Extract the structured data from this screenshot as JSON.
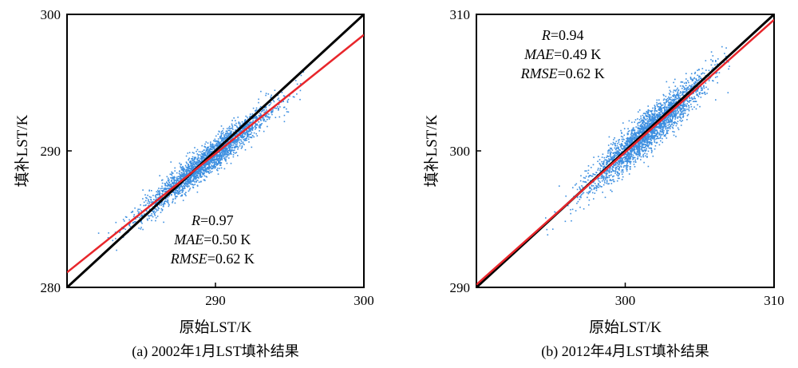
{
  "chart_data": [
    {
      "type": "scatter",
      "caption": "(a) 2002年1月LST填补结果",
      "xlabel": "原始LST/K",
      "ylabel": "填补LST/K",
      "xlim": [
        280,
        300
      ],
      "ylim": [
        280,
        300
      ],
      "x_ticks": [
        290,
        300
      ],
      "y_ticks": [
        280,
        290,
        300
      ],
      "stats": {
        "R": "0.97",
        "MAE": "0.50 K",
        "RMSE": "0.62 K"
      },
      "stats_position": "bottom-right",
      "point_cloud": {
        "x_range": [
          282,
          296
        ],
        "center": [
          289.5,
          289.2
        ]
      },
      "reference_line": {
        "name": "1:1",
        "color": "#000000",
        "points": [
          [
            280,
            280
          ],
          [
            300,
            300
          ]
        ]
      },
      "fit_line": {
        "color": "#e8262b",
        "points": [
          [
            280,
            281.1
          ],
          [
            300,
            298.5
          ]
        ]
      },
      "point_color": "#3d8fe0",
      "grid": false
    },
    {
      "type": "scatter",
      "caption": "(b) 2012年4月LST填补结果",
      "xlabel": "原始LST/K",
      "ylabel": "填补LST/K",
      "xlim": [
        290,
        310
      ],
      "ylim": [
        290,
        310
      ],
      "x_ticks": [
        300,
        310
      ],
      "y_ticks": [
        290,
        300,
        310
      ],
      "stats": {
        "R": "0.94",
        "MAE": "0.49 K",
        "RMSE": "0.62 K"
      },
      "stats_position": "top-left",
      "point_cloud": {
        "x_range": [
          294,
          307
        ],
        "center": [
          301.5,
          301.3
        ]
      },
      "reference_line": {
        "name": "1:1",
        "color": "#000000",
        "points": [
          [
            290,
            290
          ],
          [
            310,
            310
          ]
        ]
      },
      "fit_line": {
        "color": "#e8262b",
        "points": [
          [
            290,
            290.2
          ],
          [
            310,
            309.6
          ]
        ]
      },
      "point_color": "#3d8fe0",
      "grid": false
    }
  ]
}
